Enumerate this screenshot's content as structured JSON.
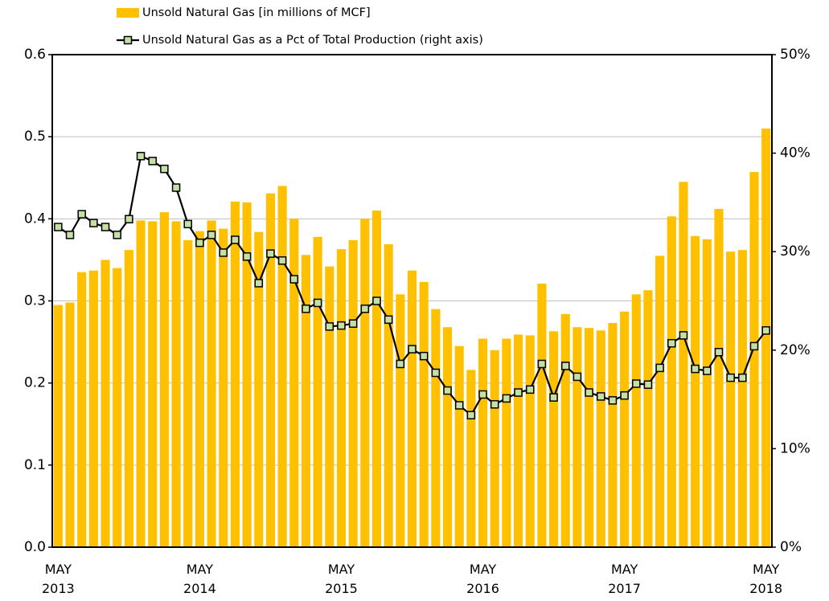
{
  "chart_data": {
    "type": "combo",
    "categories": [
      "MAY 2013",
      null,
      null,
      null,
      null,
      null,
      null,
      null,
      null,
      null,
      null,
      null,
      "MAY 2014",
      null,
      null,
      null,
      null,
      null,
      null,
      null,
      null,
      null,
      null,
      null,
      "MAY 2015",
      null,
      null,
      null,
      null,
      null,
      null,
      null,
      null,
      null,
      null,
      null,
      "MAY 2016",
      null,
      null,
      null,
      null,
      null,
      null,
      null,
      null,
      null,
      null,
      null,
      "MAY 2017",
      null,
      null,
      null,
      null,
      null,
      null,
      null,
      null,
      null,
      null,
      null,
      "MAY 2018"
    ],
    "series": [
      {
        "name": "Unsold Natural Gas [in millions of MCF]",
        "type": "bar",
        "color": "#ffc000",
        "values": [
          0.295,
          0.298,
          0.335,
          0.337,
          0.35,
          0.34,
          0.362,
          0.398,
          0.397,
          0.408,
          0.397,
          0.374,
          0.385,
          0.398,
          0.388,
          0.421,
          0.42,
          0.384,
          0.431,
          0.44,
          0.4,
          0.356,
          0.378,
          0.342,
          0.363,
          0.374,
          0.4,
          0.41,
          0.369,
          0.308,
          0.337,
          0.323,
          0.29,
          0.268,
          0.245,
          0.216,
          0.254,
          0.24,
          0.254,
          0.259,
          0.258,
          0.321,
          0.263,
          0.284,
          0.268,
          0.267,
          0.264,
          0.273,
          0.287,
          0.308,
          0.313,
          0.355,
          0.403,
          0.445,
          0.379,
          0.375,
          0.412,
          0.36,
          0.362,
          0.457,
          0.51
        ]
      },
      {
        "name": "Unsold Natural Gas as a Pct of Total Production (right axis)",
        "type": "line",
        "axis": "y2",
        "color": "#000000",
        "marker_color": "#c5e0a5",
        "values": [
          32.5,
          31.7,
          33.8,
          32.9,
          32.5,
          31.7,
          33.3,
          39.7,
          39.2,
          38.4,
          36.5,
          32.8,
          30.9,
          31.7,
          29.9,
          31.2,
          29.5,
          26.8,
          29.8,
          29.1,
          27.2,
          24.2,
          24.8,
          22.4,
          22.5,
          22.7,
          24.2,
          25.0,
          23.1,
          18.6,
          20.1,
          19.4,
          17.7,
          15.9,
          14.4,
          13.4,
          15.5,
          14.5,
          15.1,
          15.7,
          16.0,
          18.6,
          15.2,
          18.4,
          17.3,
          15.7,
          15.3,
          14.9,
          15.4,
          16.6,
          16.5,
          18.2,
          20.7,
          21.5,
          18.1,
          17.9,
          19.8,
          17.2,
          17.2,
          20.4,
          22.0
        ]
      }
    ],
    "ylim": [
      0,
      0.6
    ],
    "yticks": [
      {
        "value": 0,
        "label": "0.0"
      },
      0.1,
      0.2,
      0.3,
      0.4,
      0.5,
      0.6
    ],
    "y2lim": [
      0,
      50
    ],
    "y2ticks": [
      {
        "value": 0,
        "label": "0%"
      },
      {
        "value": 10,
        "label": "10%"
      },
      {
        "value": 20,
        "label": "20%"
      },
      {
        "value": 30,
        "label": "30%"
      },
      {
        "value": 40,
        "label": "40%"
      },
      {
        "value": 50,
        "label": "50%"
      }
    ],
    "grid": true
  }
}
